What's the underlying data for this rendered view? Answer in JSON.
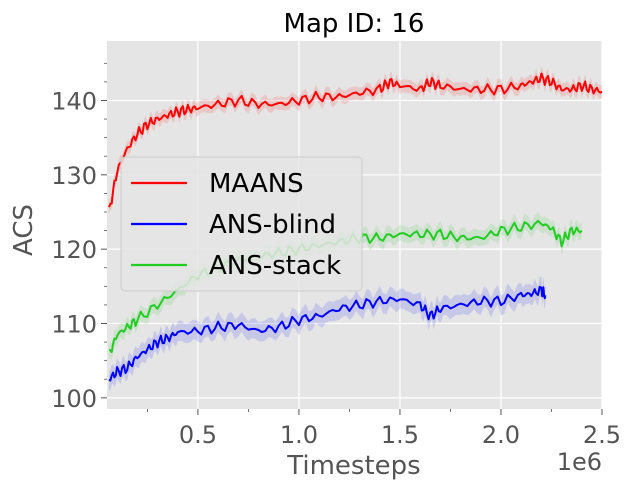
{
  "chart_data": {
    "type": "line",
    "title": "Map ID: 16",
    "xlabel": "Timesteps",
    "ylabel": "ACS",
    "x_offset_label": "1e6",
    "xlim": [
      0.05,
      2.5
    ],
    "ylim": [
      98.5,
      148
    ],
    "xticks": [
      0.5,
      1.0,
      1.5,
      2.0,
      2.5
    ],
    "xtick_labels": [
      "0.5",
      "1.0",
      "1.5",
      "2.0",
      "2.5"
    ],
    "yticks": [
      100,
      110,
      120,
      130,
      140
    ],
    "ytick_labels": [
      "100",
      "110",
      "120",
      "130",
      "140"
    ],
    "grid": true,
    "legend": "center-left",
    "series": [
      {
        "name": "MAANS",
        "color": "#ff0000",
        "x": [
          0.06,
          0.1,
          0.15,
          0.2,
          0.25,
          0.3,
          0.35,
          0.4,
          0.45,
          0.5,
          0.6,
          0.7,
          0.8,
          0.9,
          1.0,
          1.1,
          1.2,
          1.3,
          1.4,
          1.45,
          1.5,
          1.6,
          1.65,
          1.7,
          1.8,
          1.9,
          2.0,
          2.1,
          2.15,
          2.2,
          2.25,
          2.3,
          2.35,
          2.4,
          2.45,
          2.5
        ],
        "y": [
          125,
          130.5,
          133.5,
          135.5,
          136.8,
          137.5,
          138,
          138.5,
          138.8,
          139,
          139.5,
          140,
          139.5,
          139.5,
          140,
          140.5,
          140.5,
          141,
          141.5,
          142.5,
          142,
          141.5,
          142.5,
          142,
          141.5,
          141.5,
          141.5,
          142,
          142.5,
          143,
          142.5,
          141.5,
          141.5,
          142,
          141.5,
          141.2
        ],
        "band": 1.0
      },
      {
        "name": "ANS-blind",
        "color": "#0000ff",
        "x": [
          0.06,
          0.1,
          0.15,
          0.2,
          0.25,
          0.3,
          0.35,
          0.4,
          0.5,
          0.6,
          0.7,
          0.8,
          0.9,
          1.0,
          1.1,
          1.2,
          1.3,
          1.4,
          1.5,
          1.6,
          1.65,
          1.7,
          1.8,
          1.9,
          2.0,
          2.1,
          2.15,
          2.2,
          2.22
        ],
        "y": [
          102.5,
          103.5,
          104,
          105.5,
          106.5,
          107.5,
          108,
          108.8,
          109,
          109.5,
          109.8,
          109,
          109.5,
          110.5,
          111,
          112,
          112.5,
          113,
          113.3,
          112.5,
          111,
          112,
          112.5,
          113,
          113,
          113.8,
          114,
          114.5,
          113.8
        ],
        "band": 1.5
      },
      {
        "name": "ANS-stack",
        "color": "#22cc22",
        "x": [
          0.06,
          0.1,
          0.15,
          0.2,
          0.3,
          0.4,
          0.5,
          0.6,
          0.7,
          0.8,
          0.9,
          1.0,
          1.1,
          1.2,
          1.3,
          1.4,
          1.5,
          1.6,
          1.7,
          1.8,
          1.9,
          2.0,
          2.1,
          2.2,
          2.25,
          2.3,
          2.35,
          2.4
        ],
        "y": [
          105.8,
          108.5,
          109.5,
          110.5,
          112.5,
          114.5,
          116.5,
          117.5,
          118.5,
          119,
          119.5,
          120,
          120.5,
          121,
          121.5,
          121.5,
          122,
          122,
          122,
          121.5,
          121.5,
          122.5,
          123,
          123.5,
          122.8,
          121,
          122.5,
          122.5
        ],
        "band": 1.2
      }
    ]
  }
}
